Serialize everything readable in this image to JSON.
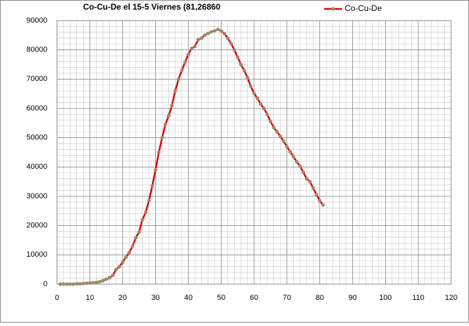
{
  "chart_data": {
    "type": "line",
    "title": "Co-Cu-De el 15-5 Viernes (81,26860",
    "x": [
      1,
      2,
      3,
      4,
      5,
      6,
      7,
      8,
      9,
      10,
      11,
      12,
      13,
      14,
      15,
      16,
      17,
      18,
      19,
      20,
      21,
      22,
      23,
      24,
      25,
      26,
      27,
      28,
      29,
      30,
      31,
      32,
      33,
      34,
      35,
      36,
      37,
      38,
      39,
      40,
      41,
      42,
      43,
      44,
      45,
      46,
      47,
      48,
      49,
      50,
      51,
      52,
      53,
      54,
      55,
      56,
      57,
      58,
      59,
      60,
      61,
      62,
      63,
      64,
      65,
      66,
      67,
      68,
      69,
      70,
      71,
      72,
      73,
      74,
      75,
      76,
      77,
      78,
      79,
      80,
      81
    ],
    "series": [
      {
        "name": "Co-Cu-De",
        "color": "#e00000",
        "marker_color": "#9c8a6e",
        "values": [
          0,
          0,
          0,
          0,
          0,
          100,
          100,
          200,
          300,
          400,
          500,
          600,
          800,
          1200,
          1700,
          2200,
          3000,
          5000,
          6000,
          7500,
          9200,
          10800,
          13000,
          15800,
          17800,
          22000,
          24500,
          28500,
          33500,
          39000,
          45000,
          50000,
          54500,
          57500,
          61000,
          66000,
          70000,
          73000,
          75800,
          78500,
          80500,
          81200,
          83500,
          84000,
          85000,
          85600,
          86200,
          86500,
          87000,
          86500,
          85500,
          84000,
          82200,
          80000,
          77500,
          75000,
          73000,
          70500,
          67500,
          65200,
          63500,
          61500,
          60000,
          58000,
          55500,
          53500,
          52000,
          50500,
          48800,
          47000,
          45200,
          43500,
          41800,
          40300,
          38200,
          36000,
          35000,
          32800,
          30500,
          28500,
          27000
        ]
      }
    ],
    "xlim": [
      0,
      120
    ],
    "xticks": [
      0,
      10,
      20,
      30,
      40,
      50,
      60,
      70,
      80,
      90,
      100,
      110,
      120
    ],
    "ylim": [
      0,
      90000
    ],
    "yticks": [
      0,
      10000,
      20000,
      30000,
      40000,
      50000,
      60000,
      70000,
      80000,
      90000
    ],
    "grid": true
  }
}
